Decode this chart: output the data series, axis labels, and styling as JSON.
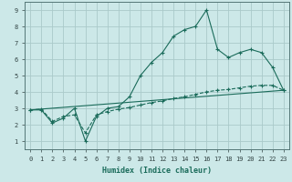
{
  "xlabel": "Humidex (Indice chaleur)",
  "bg_color": "#cce8e8",
  "grid_color": "#aacaca",
  "line_color": "#1a6b5a",
  "xlim": [
    -0.5,
    23.5
  ],
  "ylim": [
    0.5,
    9.5
  ],
  "curve1_x": [
    0,
    1,
    2,
    3,
    4,
    5,
    6,
    7,
    8,
    9,
    10,
    11,
    12,
    13,
    14,
    15,
    16,
    17,
    18,
    19,
    20,
    21,
    22,
    23
  ],
  "curve1_y": [
    2.9,
    2.9,
    2.1,
    2.4,
    3.0,
    1.0,
    2.5,
    3.0,
    3.1,
    3.7,
    5.0,
    5.8,
    6.4,
    7.4,
    7.8,
    8.0,
    9.0,
    6.6,
    6.1,
    6.4,
    6.6,
    6.4,
    5.5,
    4.1
  ],
  "curve2_x": [
    0,
    1,
    2,
    3,
    4,
    5,
    6,
    7,
    8,
    9,
    10,
    11,
    12,
    13,
    14,
    15,
    16,
    17,
    18,
    19,
    20,
    21,
    22,
    23
  ],
  "curve2_y": [
    2.9,
    2.95,
    2.2,
    2.5,
    2.6,
    1.5,
    2.6,
    2.8,
    2.95,
    3.05,
    3.2,
    3.35,
    3.45,
    3.6,
    3.7,
    3.85,
    4.0,
    4.1,
    4.15,
    4.25,
    4.35,
    4.4,
    4.4,
    4.1
  ],
  "trend_x": [
    0,
    23
  ],
  "trend_y": [
    2.9,
    4.1
  ]
}
